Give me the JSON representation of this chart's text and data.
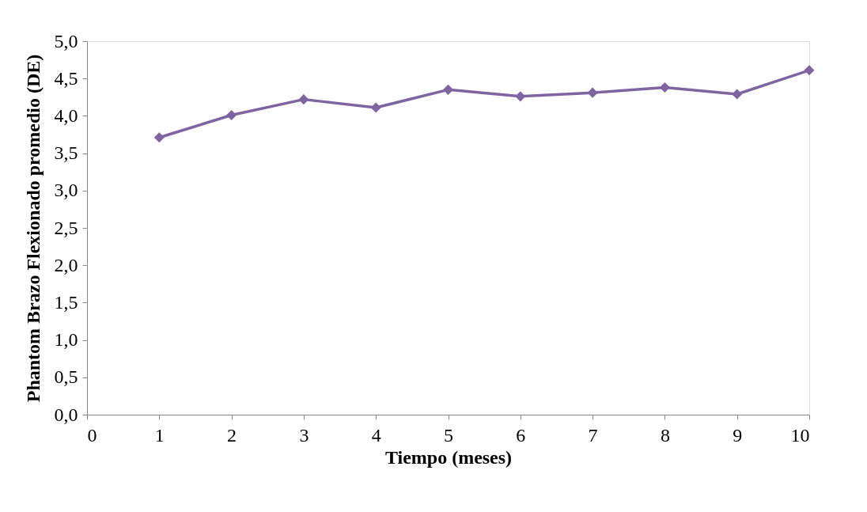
{
  "chart_data": {
    "type": "line",
    "xlabel": "Tiempo (meses)",
    "ylabel": "Phantom Brazo Flexionado promedio (DE)",
    "x": [
      1,
      2,
      3,
      4,
      5,
      6,
      7,
      8,
      9,
      10
    ],
    "series": [
      {
        "color": "#8064a2",
        "values": [
          3.71,
          4.01,
          4.22,
          4.11,
          4.35,
          4.26,
          4.31,
          4.38,
          4.29,
          4.61
        ]
      }
    ],
    "xlim": [
      0,
      10
    ],
    "xticks": [
      0,
      1,
      2,
      3,
      4,
      5,
      6,
      7,
      8,
      9,
      10
    ],
    "ylim": [
      0,
      5
    ],
    "yticks": [
      {
        "value": 0,
        "label": "0,0"
      },
      {
        "value": 0.5,
        "label": "0,5"
      },
      {
        "value": 1,
        "label": "1,0"
      },
      {
        "value": 1.5,
        "label": "1,5"
      },
      {
        "value": 2,
        "label": "2,0"
      },
      {
        "value": 2.5,
        "label": "2,5"
      },
      {
        "value": 3,
        "label": "3,0"
      },
      {
        "value": 3.5,
        "label": "3,5"
      },
      {
        "value": 4,
        "label": "4,0"
      },
      {
        "value": 4.5,
        "label": "4,5"
      },
      {
        "value": 5,
        "label": "5,0"
      }
    ],
    "grid": false,
    "marker": "diamond",
    "line_style": "solid"
  }
}
